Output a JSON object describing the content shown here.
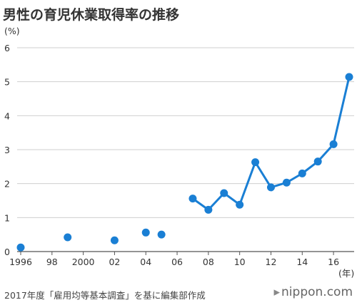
{
  "chart_data": {
    "type": "line",
    "title": "男性の育児休業取得率の推移",
    "ylabel": "(%)",
    "xlabel": "(年)",
    "ylim": [
      0,
      6
    ],
    "y_ticks": [
      "0",
      "1",
      "2",
      "3",
      "4",
      "5",
      "6"
    ],
    "x_ticks": [
      {
        "year": 1996,
        "label": "1996"
      },
      {
        "year": 1998,
        "label": "98"
      },
      {
        "year": 2000,
        "label": "2000"
      },
      {
        "year": 2002,
        "label": "02"
      },
      {
        "year": 2004,
        "label": "04"
      },
      {
        "year": 2006,
        "label": "06"
      },
      {
        "year": 2008,
        "label": "08"
      },
      {
        "year": 2010,
        "label": "10"
      },
      {
        "year": 2012,
        "label": "12"
      },
      {
        "year": 2014,
        "label": "14"
      },
      {
        "year": 2016,
        "label": "16"
      }
    ],
    "xlim": [
      1996,
      2017
    ],
    "grid": "horizontal",
    "line_color": "#1a7fd4",
    "series": [
      {
        "points": [
          {
            "year": 1996,
            "value": 0.12
          },
          {
            "year": 1999,
            "value": 0.42
          },
          {
            "year": 2002,
            "value": 0.33
          },
          {
            "year": 2004,
            "value": 0.56
          },
          {
            "year": 2005,
            "value": 0.5
          },
          {
            "year": 2007,
            "value": 1.56
          },
          {
            "year": 2008,
            "value": 1.23
          },
          {
            "year": 2009,
            "value": 1.72
          },
          {
            "year": 2010,
            "value": 1.38
          },
          {
            "year": 2011,
            "value": 2.63
          },
          {
            "year": 2012,
            "value": 1.89
          },
          {
            "year": 2013,
            "value": 2.03
          },
          {
            "year": 2014,
            "value": 2.3
          },
          {
            "year": 2015,
            "value": 2.65
          },
          {
            "year": 2016,
            "value": 3.16
          },
          {
            "year": 2017,
            "value": 5.14
          }
        ],
        "connected_from_year": 2007
      }
    ]
  },
  "source": "2017年度「雇用均等基本調査」を基に編集部作成",
  "brand": {
    "mark": "▸",
    "name": "nippon.com"
  }
}
